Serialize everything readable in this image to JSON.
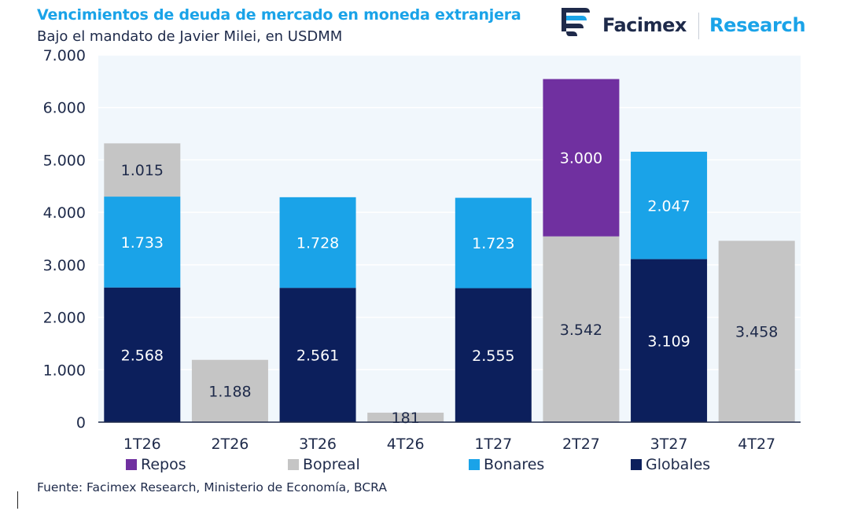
{
  "header": {
    "title": "Vencimientos de deuda de mercado en moneda extranjera",
    "subtitle": "Bajo el mandato de Javier Milei, en USDMM"
  },
  "logo": {
    "name": "Facimex",
    "tagline": "Research"
  },
  "source": "Fuente: Facimex Research, Ministerio de Economía, BCRA",
  "colors": {
    "repos": "#7030a0",
    "bopreal": "#c5c5c5",
    "bonares": "#1aa3e8",
    "globales": "#0c1f5c",
    "plot_bg": "#f1f7fc",
    "title": "#1aa3e8",
    "text": "#1e2a4a"
  },
  "chart_data": {
    "type": "bar",
    "stacked": true,
    "title": "Vencimientos de deuda de mercado en moneda extranjera",
    "subtitle": "Bajo el mandato de Javier Milei, en USDMM",
    "categories": [
      "1T26",
      "2T26",
      "3T26",
      "4T26",
      "1T27",
      "2T27",
      "3T27",
      "4T27"
    ],
    "series": [
      {
        "name": "Globales",
        "values": [
          2568,
          0,
          2561,
          0,
          2555,
          0,
          3109,
          0
        ]
      },
      {
        "name": "Bopreal",
        "values": [
          1015,
          1188,
          0,
          181,
          0,
          3542,
          0,
          3458
        ]
      },
      {
        "name": "Bonares",
        "values": [
          1733,
          0,
          1728,
          0,
          1723,
          0,
          2047,
          0
        ]
      },
      {
        "name": "Repos",
        "values": [
          0,
          0,
          0,
          0,
          0,
          3000,
          0,
          0
        ]
      }
    ],
    "stack_order": [
      "Globales",
      "Bonares",
      "Bopreal",
      "Repos"
    ],
    "ylim": [
      0,
      7000
    ],
    "yticks": [
      0,
      1000,
      2000,
      3000,
      4000,
      5000,
      6000,
      7000
    ],
    "ytick_labels": [
      "0",
      "1.000",
      "2.000",
      "3.000",
      "4.000",
      "5.000",
      "6.000",
      "7.000"
    ],
    "data_labels": [
      [
        "2.568",
        "",
        "1.733",
        "1.015",
        ""
      ],
      [
        "",
        "",
        "",
        "1.188",
        ""
      ],
      [
        "2.561",
        "",
        "1.728",
        "",
        ""
      ],
      [
        "",
        "",
        "",
        "181",
        ""
      ],
      [
        "2.555",
        "",
        "1.723",
        "",
        ""
      ],
      [
        "",
        "",
        "",
        "3.542",
        "3.000"
      ],
      [
        "3.109",
        "",
        "2.047",
        "",
        ""
      ],
      [
        "",
        "",
        "",
        "3.458",
        ""
      ]
    ],
    "legend": [
      "Repos",
      "Bopreal",
      "Bonares",
      "Globales"
    ],
    "legend_position": "bottom",
    "grid": true
  }
}
